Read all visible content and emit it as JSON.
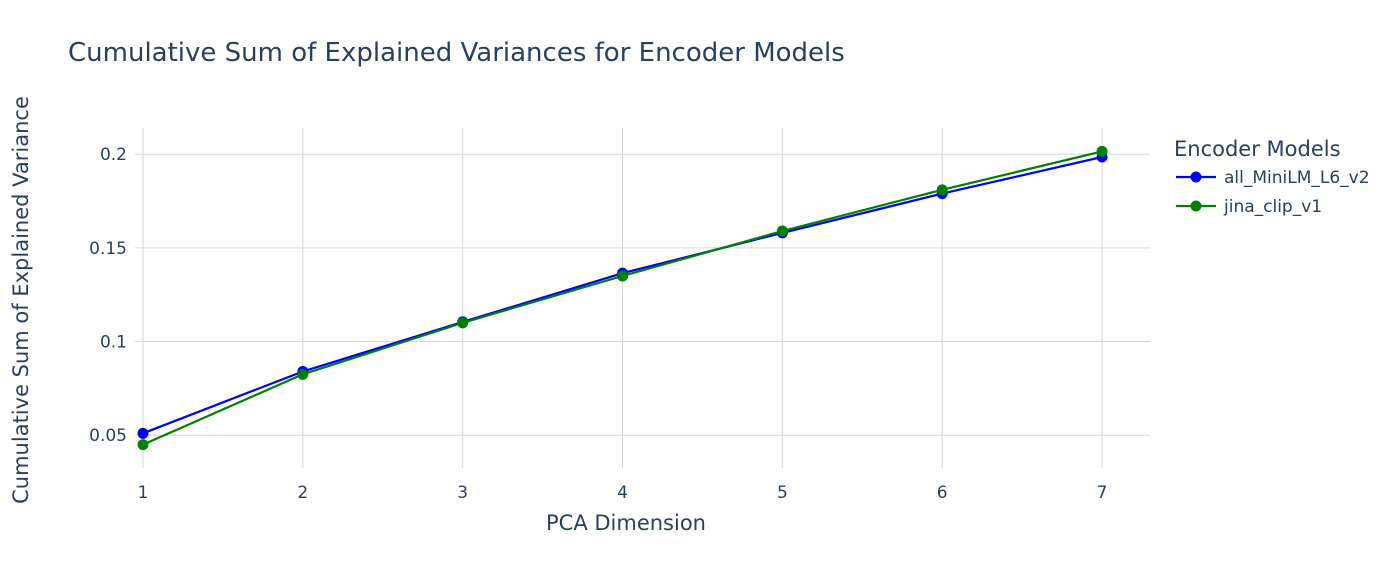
{
  "chart_data": {
    "type": "line",
    "title": "Cumulative Sum of Explained Variances for Encoder Models",
    "xlabel": "PCA Dimension",
    "ylabel": "Cumulative Sum of Explained Variance",
    "x": [
      1,
      2,
      3,
      4,
      5,
      6,
      7
    ],
    "xlim": [
      0.95,
      7.3
    ],
    "ylim": [
      0.0325,
      0.214
    ],
    "y_ticks": [
      0.05,
      0.1,
      0.15,
      0.2
    ],
    "y_tick_labels": [
      "0.05",
      "0.1",
      "0.15",
      "0.2"
    ],
    "grid": true,
    "legend": {
      "title": "Encoder Models",
      "placement": "right"
    },
    "series": [
      {
        "name": "all_MiniLM_L6_v2",
        "color": "#0000ff",
        "values": [
          0.051,
          0.084,
          0.1105,
          0.1365,
          0.158,
          0.179,
          0.1985
        ]
      },
      {
        "name": "jina_clip_v1",
        "color": "#008000",
        "values": [
          0.045,
          0.0825,
          0.11,
          0.135,
          0.159,
          0.181,
          0.2015
        ]
      }
    ]
  }
}
